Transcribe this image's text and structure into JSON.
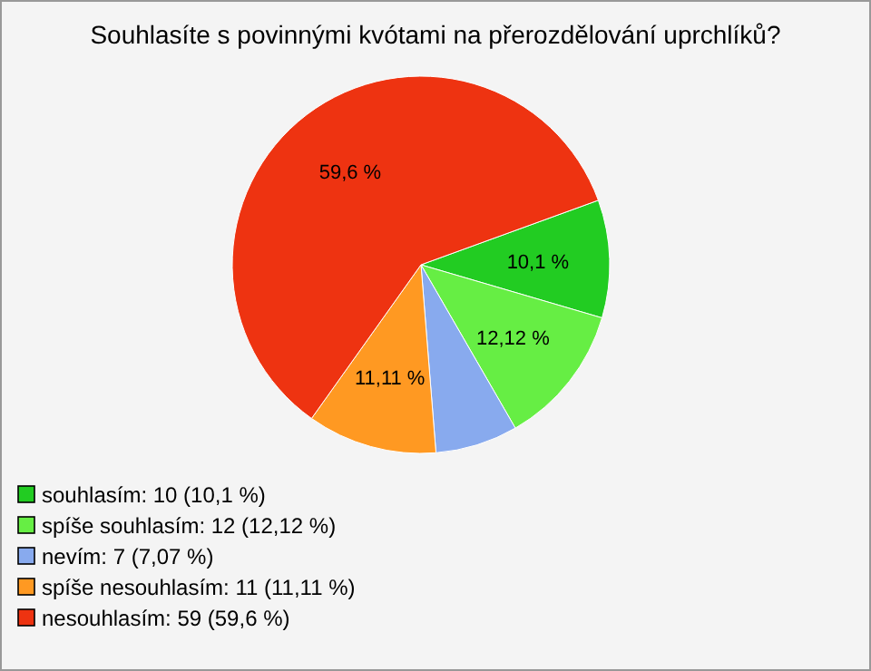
{
  "chart_data": {
    "type": "pie",
    "title": "Souhlasíte s povinnými kvótami na přerozdělování uprchlíků?",
    "categories": [
      "souhlasím: 10 (10,1 %)",
      "spíše souhlasím: 12 (12,12 %)",
      "nevím: 7 (7,07 %)",
      "spíše nesouhlasím: 11 (11,11 %)",
      "nesouhlasím: 59 (59,6 %)"
    ],
    "values": [
      10.1,
      12.12,
      7.07,
      11.11,
      59.6
    ],
    "colors": [
      "#22cc22",
      "#66ee44",
      "#88aaee",
      "#ff9922",
      "#ee3311"
    ],
    "value_labels": [
      "10,1 %",
      "12,12 %",
      null,
      "11,11 %",
      "59,6 %"
    ],
    "legend": "bottom left"
  }
}
